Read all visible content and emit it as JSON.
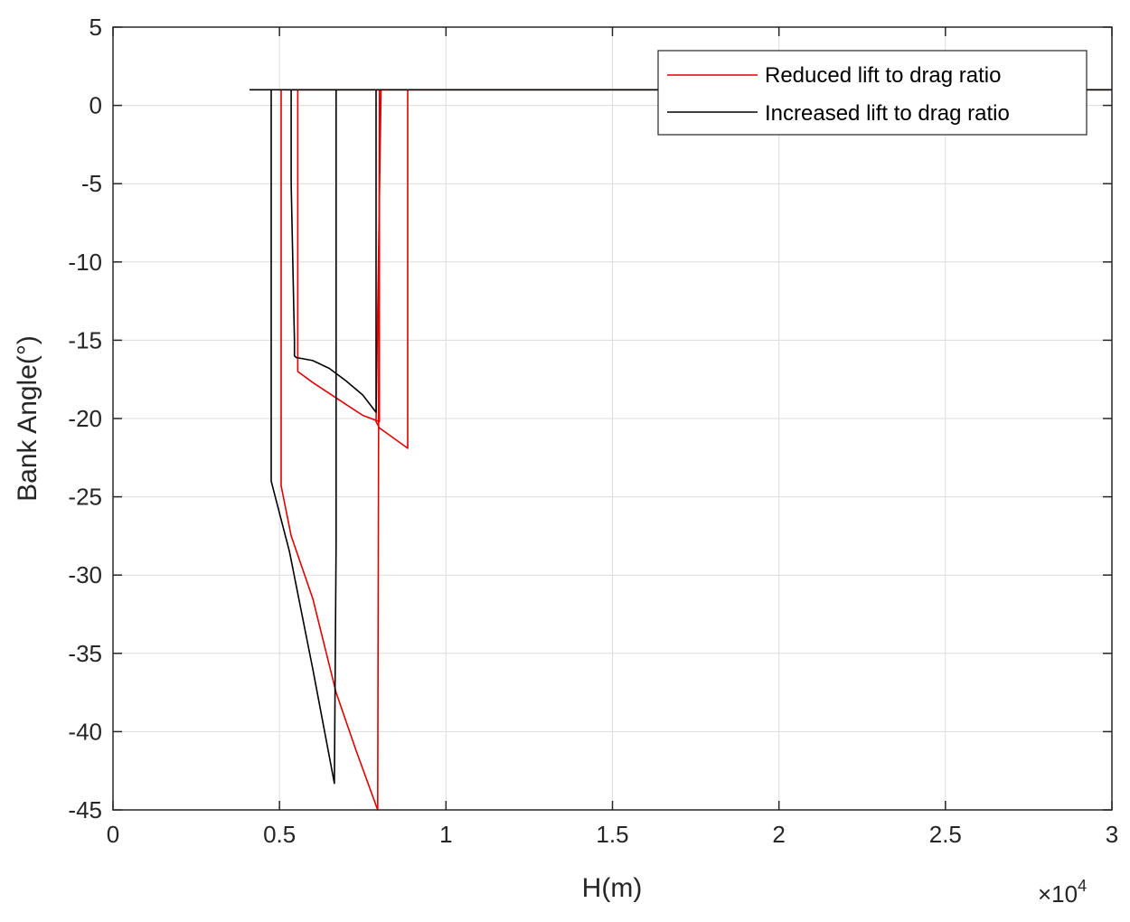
{
  "chart_data": {
    "type": "line",
    "xlabel": "H(m)",
    "ylabel": "Bank Angle(°)",
    "xlim": [
      0,
      30000
    ],
    "ylim": [
      -45,
      5
    ],
    "x_exponent_label": "×10",
    "x_exponent_power": "4",
    "x_ticks": [
      0,
      5000,
      10000,
      15000,
      20000,
      25000,
      30000
    ],
    "x_tick_labels": [
      "0",
      "0.5",
      "1",
      "1.5",
      "2",
      "2.5",
      "3"
    ],
    "y_ticks": [
      5,
      0,
      -5,
      -10,
      -15,
      -20,
      -25,
      -30,
      -35,
      -40,
      -45
    ],
    "y_tick_labels": [
      "5",
      "0",
      "-5",
      "-10",
      "-15",
      "-20",
      "-25",
      "-30",
      "-35",
      "-40",
      "-45"
    ],
    "grid": true,
    "legend_position": "top-right",
    "series": [
      {
        "name": "Reduced lift to drag ratio",
        "color": "#e00000",
        "x": [
          5050,
          5050,
          5150,
          5150,
          5250,
          5250,
          5350,
          5550,
          5550,
          6000,
          6500,
          7000,
          7500,
          7900,
          8050,
          8050,
          8850,
          8850,
          30000
        ],
        "y": [
          1,
          -24.3,
          -26.5,
          1,
          1,
          -27,
          -27,
          1,
          -17,
          -17.6,
          -18.4,
          -19,
          -19.8,
          -20.2,
          1,
          1,
          -22,
          1,
          1
        ],
        "path": [
          [
            5050,
            1
          ],
          [
            5050,
            -24.3
          ],
          [
            5350,
            -27.5
          ],
          [
            6000,
            -31.5
          ],
          [
            6700,
            -37.5
          ],
          [
            7300,
            -41.2
          ],
          [
            7950,
            -45
          ],
          [
            7950,
            -45
          ],
          [
            8000,
            1
          ],
          [
            8000,
            -20.2
          ],
          [
            7500,
            -19.8
          ],
          [
            7000,
            -19.1
          ],
          [
            6500,
            -18.4
          ],
          [
            6000,
            -17.7
          ],
          [
            5550,
            -17
          ],
          [
            5550,
            1
          ],
          [
            5200,
            1
          ],
          [
            5200,
            1
          ],
          [
            8850,
            1
          ],
          [
            8850,
            -21.9
          ],
          [
            8000,
            -20.6
          ],
          [
            7900,
            -20.2
          ],
          [
            8050,
            1
          ],
          [
            30000,
            1
          ]
        ]
      },
      {
        "name": "Increased lift to drag ratio",
        "color": "#000000",
        "x": [
          4100,
          4750,
          4750,
          5350,
          5350,
          5400
        ],
        "y": [
          1,
          1,
          -24,
          1,
          -16,
          -16
        ],
        "path": [
          [
            4100,
            1
          ],
          [
            4750,
            1
          ],
          [
            4750,
            -24
          ],
          [
            5300,
            -28.5
          ],
          [
            6000,
            -36
          ],
          [
            6650,
            -43.3
          ],
          [
            6650,
            -43.3
          ],
          [
            6700,
            -28
          ],
          [
            6700,
            1
          ],
          [
            7900,
            1
          ],
          [
            7900,
            -19.6
          ],
          [
            7500,
            -18.5
          ],
          [
            7000,
            -17.6
          ],
          [
            6500,
            -16.8
          ],
          [
            6000,
            -16.3
          ],
          [
            5500,
            -16.1
          ],
          [
            5450,
            -16
          ],
          [
            5450,
            -15
          ],
          [
            5350,
            -5
          ],
          [
            5350,
            1
          ],
          [
            4750,
            1
          ],
          [
            7900,
            1
          ],
          [
            30000,
            1
          ]
        ]
      }
    ]
  }
}
